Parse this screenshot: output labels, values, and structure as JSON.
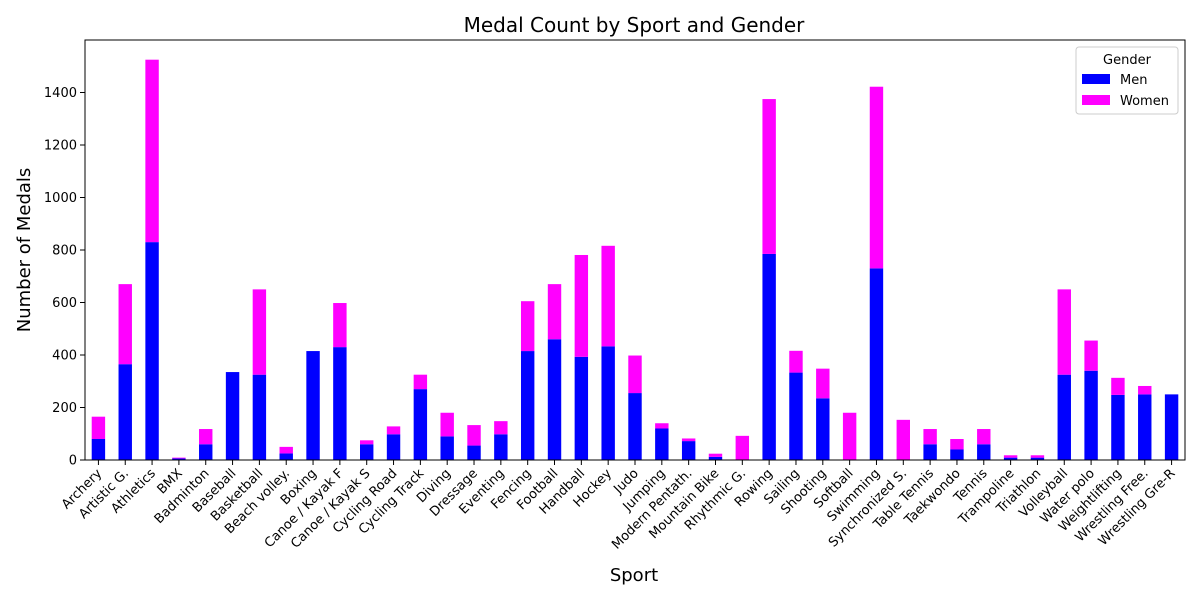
{
  "chart_data": {
    "type": "bar",
    "stacked": true,
    "title": "Medal Count by Sport and Gender",
    "xlabel": "Sport",
    "ylabel": "Number of Medals",
    "ylim": [
      0,
      1600
    ],
    "yticks": [
      0,
      200,
      400,
      600,
      800,
      1000,
      1200,
      1400
    ],
    "grid": false,
    "legend": {
      "title": "Gender",
      "position": "top-right"
    },
    "categories": [
      "Archery",
      "Artistic G.",
      "Athletics",
      "BMX",
      "Badminton",
      "Baseball",
      "Basketball",
      "Beach volley.",
      "Boxing",
      "Canoe / Kayak F",
      "Canoe / Kayak S",
      "Cycling Road",
      "Cycling Track",
      "Diving",
      "Dressage",
      "Eventing",
      "Fencing",
      "Football",
      "Handball",
      "Hockey",
      "Judo",
      "Jumping",
      "Modern Pentath.",
      "Mountain Bike",
      "Rhythmic G.",
      "Rowing",
      "Sailing",
      "Shooting",
      "Softball",
      "Swimming",
      "Synchronized S.",
      "Table Tennis",
      "Taekwondo",
      "Tennis",
      "Trampoline",
      "Triathlon",
      "Volleyball",
      "Water polo",
      "Weightlifting",
      "Wrestling Free.",
      "Wrestling Gre-R"
    ],
    "series": [
      {
        "name": "Men",
        "color": "#0000ff",
        "values": [
          80,
          365,
          830,
          6,
          60,
          335,
          325,
          25,
          415,
          430,
          60,
          98,
          270,
          90,
          55,
          98,
          415,
          460,
          393,
          433,
          255,
          120,
          72,
          12,
          0,
          785,
          333,
          235,
          0,
          730,
          0,
          60,
          40,
          60,
          9,
          9,
          325,
          340,
          248,
          250,
          250
        ]
      },
      {
        "name": "Women",
        "color": "#ff00ff",
        "values": [
          85,
          305,
          695,
          3,
          58,
          0,
          325,
          25,
          0,
          168,
          15,
          30,
          55,
          90,
          78,
          50,
          190,
          210,
          388,
          383,
          143,
          20,
          10,
          12,
          92,
          590,
          83,
          113,
          180,
          692,
          153,
          58,
          40,
          58,
          9,
          9,
          325,
          115,
          65,
          32,
          0
        ]
      }
    ]
  }
}
